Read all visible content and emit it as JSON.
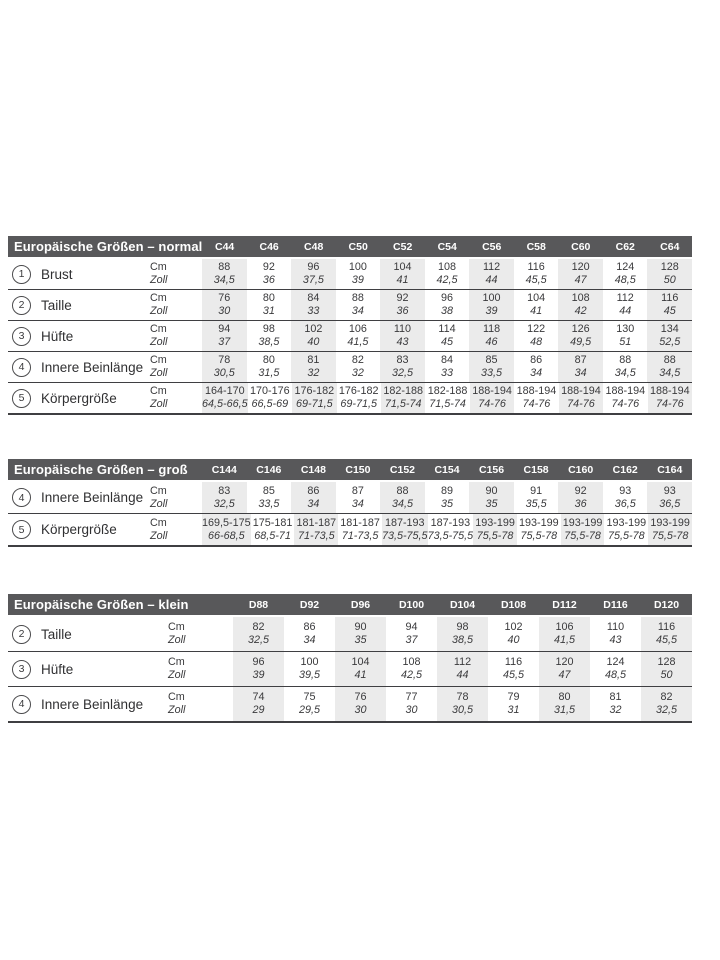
{
  "units": {
    "cm": "Cm",
    "zoll": "Zoll"
  },
  "colors": {
    "header_bar": "#58585a",
    "header_text": "#ffffff",
    "shaded_column": "#ebebeb",
    "row_line": "#3f3f42",
    "text": "#3a3a3c"
  },
  "tables": [
    {
      "title": "Europäische Größen – normal",
      "columns": [
        "C44",
        "C46",
        "C48",
        "C50",
        "C52",
        "C54",
        "C56",
        "C58",
        "C60",
        "C62",
        "C64"
      ],
      "rows": [
        {
          "num": "1",
          "label": "Brust",
          "cm": [
            "88",
            "92",
            "96",
            "100",
            "104",
            "108",
            "112",
            "116",
            "120",
            "124",
            "128"
          ],
          "zoll": [
            "34,5",
            "36",
            "37,5",
            "39",
            "41",
            "42,5",
            "44",
            "45,5",
            "47",
            "48,5",
            "50"
          ]
        },
        {
          "num": "2",
          "label": "Taille",
          "cm": [
            "76",
            "80",
            "84",
            "88",
            "92",
            "96",
            "100",
            "104",
            "108",
            "112",
            "116"
          ],
          "zoll": [
            "30",
            "31",
            "33",
            "34",
            "36",
            "38",
            "39",
            "41",
            "42",
            "44",
            "45"
          ]
        },
        {
          "num": "3",
          "label": "Hüfte",
          "cm": [
            "94",
            "98",
            "102",
            "106",
            "110",
            "114",
            "118",
            "122",
            "126",
            "130",
            "134"
          ],
          "zoll": [
            "37",
            "38,5",
            "40",
            "41,5",
            "43",
            "45",
            "46",
            "48",
            "49,5",
            "51",
            "52,5"
          ]
        },
        {
          "num": "4",
          "label": "Innere Beinlänge",
          "cm": [
            "78",
            "80",
            "81",
            "82",
            "83",
            "84",
            "85",
            "86",
            "87",
            "88",
            "88"
          ],
          "zoll": [
            "30,5",
            "31,5",
            "32",
            "32",
            "32,5",
            "33",
            "33,5",
            "34",
            "34",
            "34,5",
            "34,5"
          ]
        },
        {
          "num": "5",
          "label": "Körpergröße",
          "cm": [
            "164-170",
            "170-176",
            "176-182",
            "176-182",
            "182-188",
            "182-188",
            "188-194",
            "188-194",
            "188-194",
            "188-194",
            "188-194"
          ],
          "zoll": [
            "64,5-66,5",
            "66,5-69",
            "69-71,5",
            "69-71,5",
            "71,5-74",
            "71,5-74",
            "74-76",
            "74-76",
            "74-76",
            "74-76",
            "74-76"
          ]
        }
      ]
    },
    {
      "title": "Europäische Größen – groß",
      "columns": [
        "C144",
        "C146",
        "C148",
        "C150",
        "C152",
        "C154",
        "C156",
        "C158",
        "C160",
        "C162",
        "C164"
      ],
      "rows": [
        {
          "num": "4",
          "label": "Innere Beinlänge",
          "cm": [
            "83",
            "85",
            "86",
            "87",
            "88",
            "89",
            "90",
            "91",
            "92",
            "93",
            "93"
          ],
          "zoll": [
            "32,5",
            "33,5",
            "34",
            "34",
            "34,5",
            "35",
            "35",
            "35,5",
            "36",
            "36,5",
            "36,5"
          ]
        },
        {
          "num": "5",
          "label": "Körpergröße",
          "cm": [
            "169,5-175",
            "175-181",
            "181-187",
            "181-187",
            "187-193",
            "187-193",
            "193-199",
            "193-199",
            "193-199",
            "193-199",
            "193-199"
          ],
          "zoll": [
            "66-68,5",
            "68,5-71",
            "71-73,5",
            "71-73,5",
            "73,5-75,5",
            "73,5-75,5",
            "75,5-78",
            "75,5-78",
            "75,5-78",
            "75,5-78",
            "75,5-78"
          ]
        }
      ]
    },
    {
      "title": "Europäische Größen – klein",
      "columns": [
        "D88",
        "D92",
        "D96",
        "D100",
        "D104",
        "D108",
        "D112",
        "D116",
        "D120"
      ],
      "rows": [
        {
          "num": "2",
          "label": "Taille",
          "cm": [
            "82",
            "86",
            "90",
            "94",
            "98",
            "102",
            "106",
            "110",
            "116"
          ],
          "zoll": [
            "32,5",
            "34",
            "35",
            "37",
            "38,5",
            "40",
            "41,5",
            "43",
            "45,5"
          ]
        },
        {
          "num": "3",
          "label": "Hüfte",
          "cm": [
            "96",
            "100",
            "104",
            "108",
            "112",
            "116",
            "120",
            "124",
            "128"
          ],
          "zoll": [
            "39",
            "39,5",
            "41",
            "42,5",
            "44",
            "45,5",
            "47",
            "48,5",
            "50"
          ]
        },
        {
          "num": "4",
          "label": "Innere Beinlänge",
          "cm": [
            "74",
            "75",
            "76",
            "77",
            "78",
            "79",
            "80",
            "81",
            "82"
          ],
          "zoll": [
            "29",
            "29,5",
            "30",
            "30",
            "30,5",
            "31",
            "31,5",
            "32",
            "32,5"
          ]
        }
      ]
    }
  ]
}
